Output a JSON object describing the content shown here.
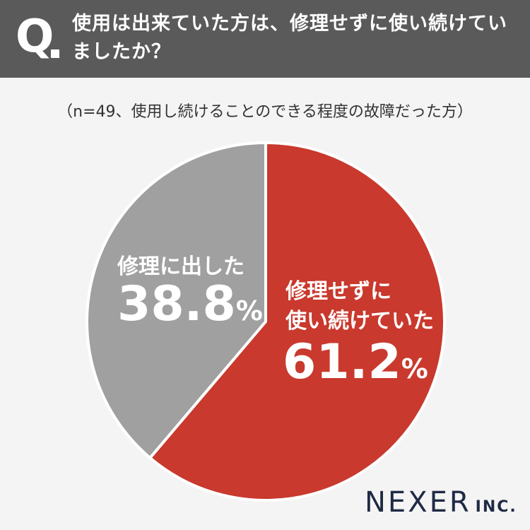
{
  "header": {
    "q_mark": "Q",
    "question": "使用は出来ていた方は、修理せずに使い続けていましたか？"
  },
  "subtitle": "（n=49、使用し続けることのできる程度の故障だった方）",
  "chart_data": {
    "type": "pie",
    "slices": [
      {
        "label": "修理せずに使い続けていた",
        "value": 61.2,
        "color": "#c9392d"
      },
      {
        "label": "修理に出した",
        "value": 38.8,
        "color": "#a0a0a0"
      }
    ],
    "labels": {
      "red_line1": "修理せずに",
      "red_line2": "使い続けていた",
      "red_value": "61.2",
      "gray_text": "修理に出した",
      "gray_value": "38.8",
      "pct_sign": "%"
    }
  },
  "logo": {
    "main": "NEXER",
    "sub": "INC."
  }
}
